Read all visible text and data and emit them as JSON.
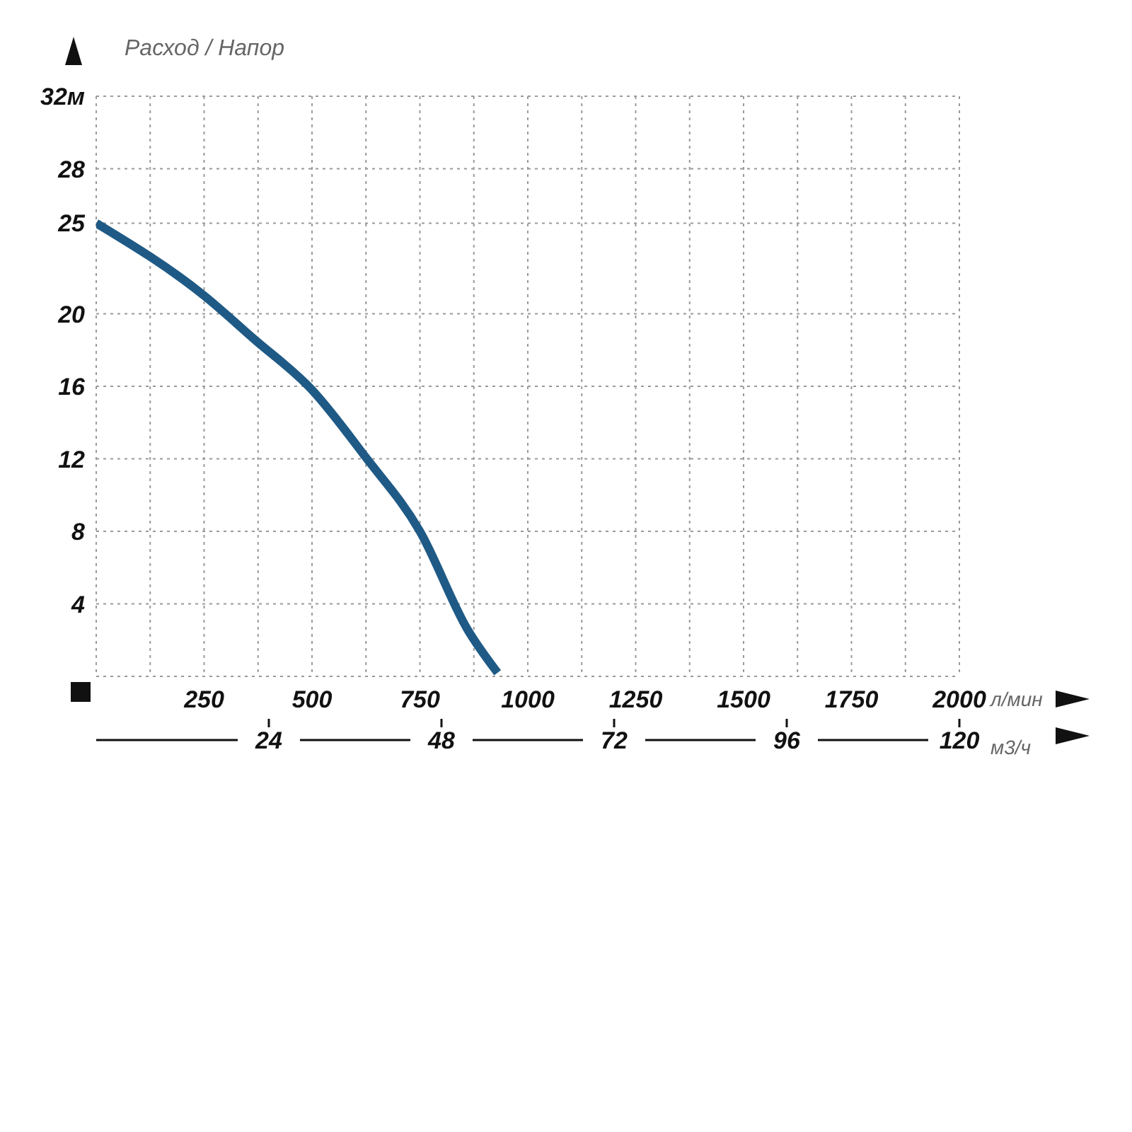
{
  "chart_data": {
    "type": "line",
    "ylabel": "Расход / Напор",
    "xlabel": "л/мин",
    "x2label": "м3/ч",
    "x": [
      0,
      250,
      366,
      500,
      624,
      750,
      860,
      930
    ],
    "series": [
      {
        "color": "#1f5a86",
        "values": [
          25,
          21,
          18.6,
          15.8,
          12.1,
          8.0,
          2.6,
          0.2
        ]
      }
    ],
    "xlim": [
      0,
      2000
    ],
    "xticks": [
      {
        "value": 0,
        "label": null
      },
      {
        "value": 125,
        "label": null
      },
      250,
      {
        "value": 375,
        "label": null
      },
      500,
      {
        "value": 625,
        "label": null
      },
      750,
      {
        "value": 875,
        "label": null
      },
      1000,
      {
        "value": 1125,
        "label": null
      },
      1250,
      {
        "value": 1375,
        "label": null
      },
      1500,
      {
        "value": 1625,
        "label": null
      },
      1750,
      {
        "value": 1875,
        "label": null
      },
      2000
    ],
    "x2lim": [
      0,
      120
    ],
    "x2ticks": [
      24,
      48,
      72,
      96,
      120
    ],
    "ylim": [
      0,
      32
    ],
    "yticks": [
      4,
      8,
      12,
      16,
      20,
      25,
      28,
      {
        "value": 32,
        "label": "32м"
      }
    ],
    "grid": true,
    "marker": "none",
    "line_style": "solid"
  }
}
